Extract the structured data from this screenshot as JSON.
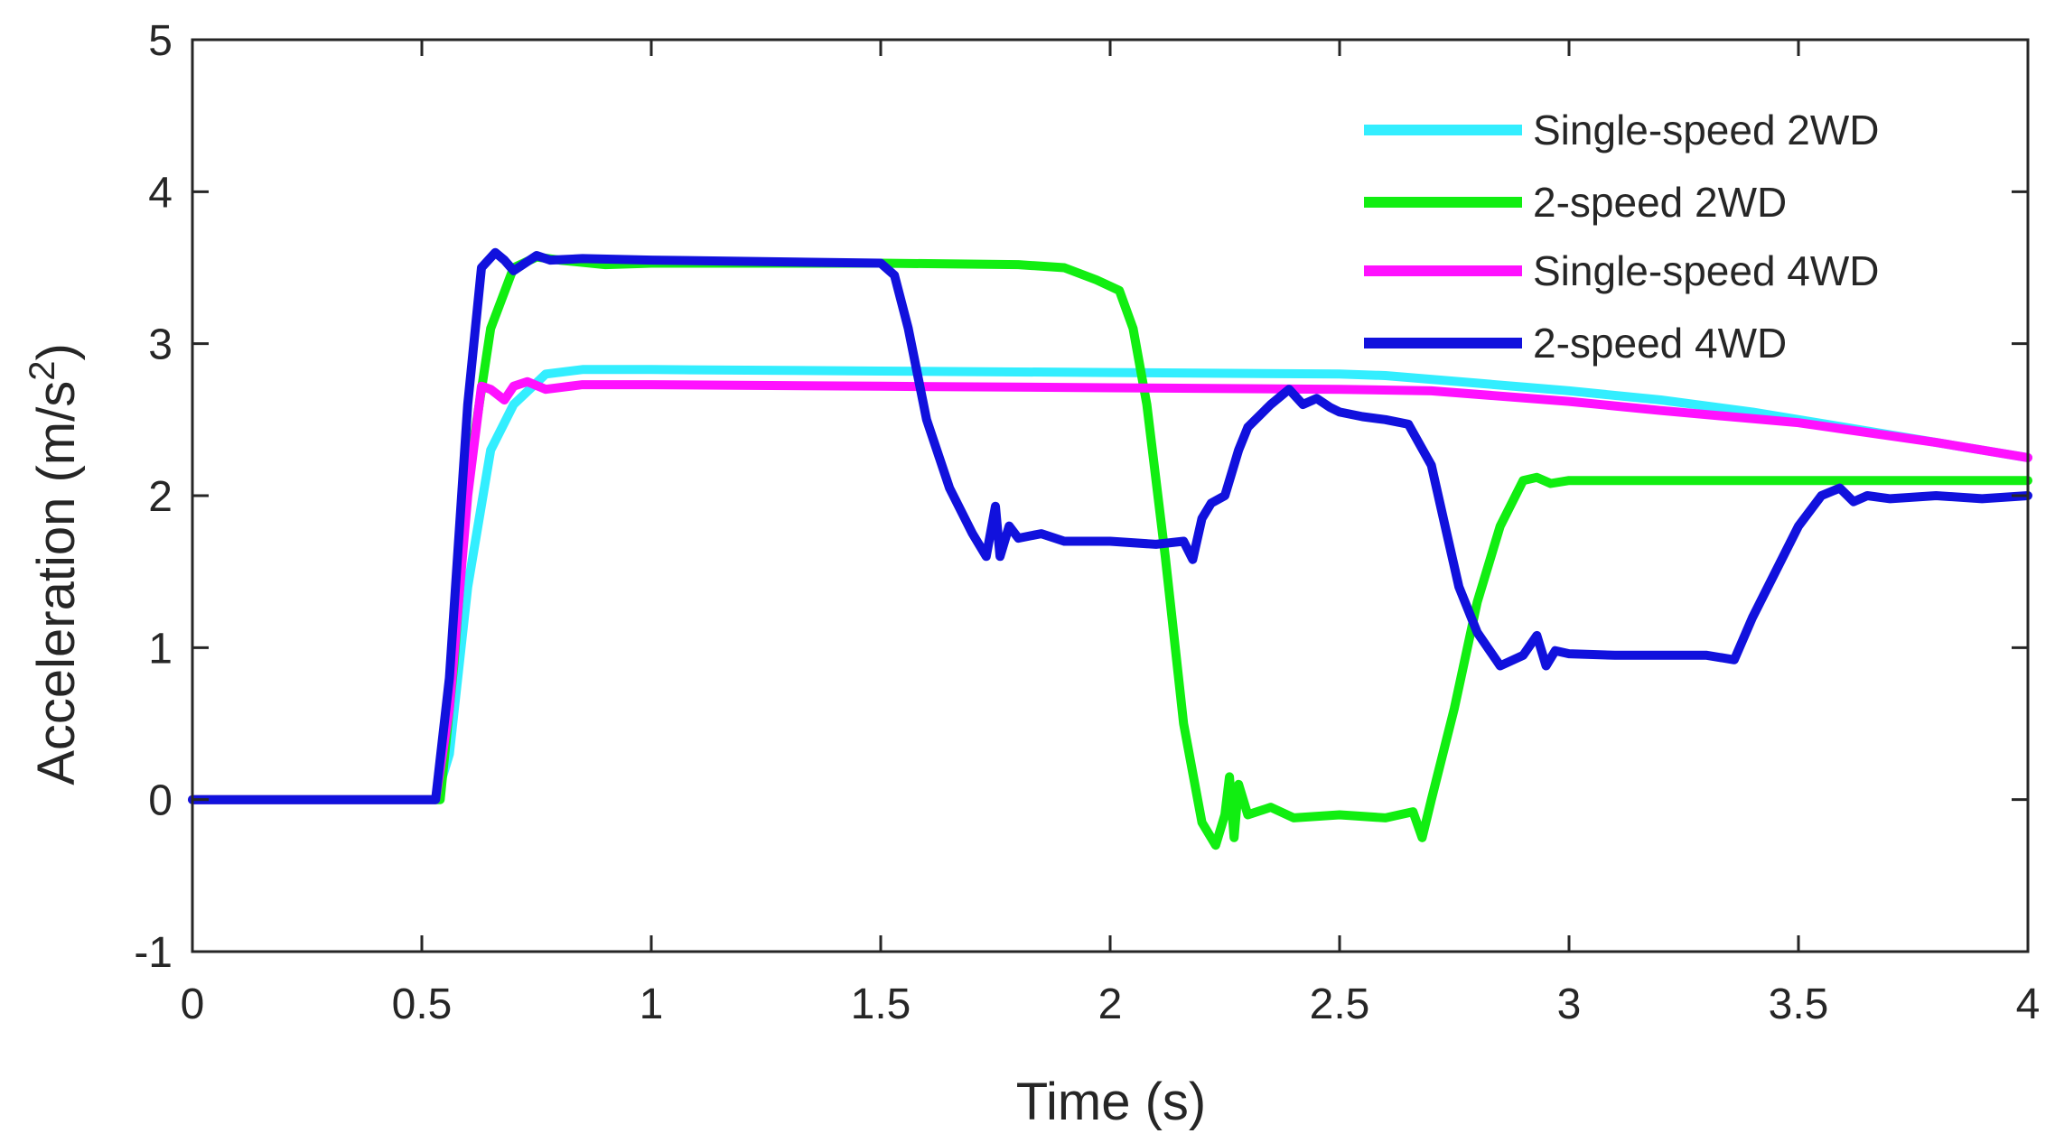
{
  "chart_data": {
    "type": "line",
    "title": "",
    "xlabel": "Time (s)",
    "ylabel_main": "Acceleration (m/s",
    "ylabel_sup": "2",
    "ylabel_end": ")",
    "xlim": [
      0,
      4
    ],
    "ylim": [
      -1,
      5
    ],
    "xticks": [
      0,
      0.5,
      1,
      1.5,
      2,
      2.5,
      3,
      3.5,
      4
    ],
    "xtick_labels": [
      "0",
      "0.5",
      "1",
      "1.5",
      "2",
      "2.5",
      "3",
      "3.5",
      "4"
    ],
    "yticks": [
      -1,
      0,
      1,
      2,
      3,
      4,
      5
    ],
    "ytick_labels": [
      "-1",
      "0",
      "1",
      "2",
      "3",
      "4",
      "5"
    ],
    "grid": false,
    "legend_position": "top-right",
    "series": [
      {
        "name": "Single-speed 2WD",
        "color": "#33eeff",
        "x": [
          0,
          0.53,
          0.56,
          0.6,
          0.65,
          0.7,
          0.77,
          0.85,
          1.0,
          1.5,
          2.0,
          2.5,
          2.6,
          2.8,
          3.0,
          3.2,
          3.4,
          3.6,
          3.8,
          4.0
        ],
        "y": [
          0,
          0,
          0.3,
          1.4,
          2.3,
          2.6,
          2.8,
          2.83,
          2.83,
          2.82,
          2.81,
          2.8,
          2.79,
          2.74,
          2.69,
          2.63,
          2.55,
          2.45,
          2.35,
          2.25
        ]
      },
      {
        "name": "2-speed 2WD",
        "color": "#11ee11",
        "x": [
          0,
          0.54,
          0.57,
          0.6,
          0.65,
          0.7,
          0.75,
          0.8,
          0.9,
          1.0,
          1.5,
          1.8,
          1.9,
          1.97,
          2.02,
          2.05,
          2.08,
          2.12,
          2.16,
          2.2,
          2.23,
          2.25,
          2.26,
          2.27,
          2.28,
          2.3,
          2.35,
          2.4,
          2.5,
          2.6,
          2.66,
          2.68,
          2.7,
          2.75,
          2.8,
          2.85,
          2.9,
          2.93,
          2.96,
          3.0,
          3.2,
          3.5,
          4.0
        ],
        "y": [
          0,
          0,
          0.9,
          2.1,
          3.1,
          3.5,
          3.57,
          3.55,
          3.52,
          3.53,
          3.53,
          3.52,
          3.5,
          3.42,
          3.35,
          3.1,
          2.6,
          1.6,
          0.5,
          -0.15,
          -0.3,
          -0.1,
          0.15,
          -0.25,
          0.1,
          -0.1,
          -0.05,
          -0.12,
          -0.1,
          -0.12,
          -0.08,
          -0.25,
          0.0,
          0.6,
          1.3,
          1.8,
          2.1,
          2.12,
          2.08,
          2.1,
          2.1,
          2.1,
          2.1
        ]
      },
      {
        "name": "Single-speed 4WD",
        "color": "#ff11ff",
        "x": [
          0,
          0.53,
          0.56,
          0.6,
          0.63,
          0.65,
          0.68,
          0.7,
          0.73,
          0.77,
          0.85,
          1.0,
          1.5,
          2.0,
          2.5,
          2.7,
          3.0,
          3.2,
          3.5,
          3.8,
          4.0
        ],
        "y": [
          0,
          0,
          0.6,
          2.0,
          2.72,
          2.7,
          2.63,
          2.72,
          2.75,
          2.7,
          2.73,
          2.73,
          2.72,
          2.71,
          2.7,
          2.69,
          2.62,
          2.56,
          2.48,
          2.35,
          2.25
        ]
      },
      {
        "name": "2-speed 4WD",
        "color": "#1111dd",
        "x": [
          0,
          0.53,
          0.56,
          0.6,
          0.63,
          0.66,
          0.68,
          0.7,
          0.72,
          0.75,
          0.78,
          0.85,
          1.0,
          1.5,
          1.53,
          1.56,
          1.6,
          1.65,
          1.7,
          1.73,
          1.75,
          1.76,
          1.78,
          1.8,
          1.85,
          1.9,
          2.0,
          2.1,
          2.16,
          2.18,
          2.2,
          2.22,
          2.25,
          2.28,
          2.3,
          2.35,
          2.39,
          2.42,
          2.45,
          2.48,
          2.5,
          2.55,
          2.6,
          2.65,
          2.7,
          2.73,
          2.76,
          2.8,
          2.85,
          2.9,
          2.93,
          2.95,
          2.97,
          3.0,
          3.1,
          3.2,
          3.3,
          3.36,
          3.4,
          3.45,
          3.5,
          3.55,
          3.59,
          3.62,
          3.65,
          3.7,
          3.8,
          3.9,
          4.0
        ],
        "y": [
          0,
          0,
          0.8,
          2.6,
          3.5,
          3.6,
          3.55,
          3.48,
          3.52,
          3.58,
          3.55,
          3.56,
          3.55,
          3.53,
          3.45,
          3.1,
          2.5,
          2.05,
          1.75,
          1.6,
          1.93,
          1.6,
          1.8,
          1.72,
          1.75,
          1.7,
          1.7,
          1.68,
          1.7,
          1.58,
          1.85,
          1.95,
          2.0,
          2.3,
          2.45,
          2.6,
          2.7,
          2.6,
          2.64,
          2.58,
          2.55,
          2.52,
          2.5,
          2.47,
          2.2,
          1.8,
          1.4,
          1.1,
          0.88,
          0.95,
          1.08,
          0.88,
          0.98,
          0.96,
          0.95,
          0.95,
          0.95,
          0.92,
          1.2,
          1.5,
          1.8,
          2.0,
          2.05,
          1.96,
          2.0,
          1.98,
          2.0,
          1.98,
          2.0
        ]
      }
    ]
  }
}
